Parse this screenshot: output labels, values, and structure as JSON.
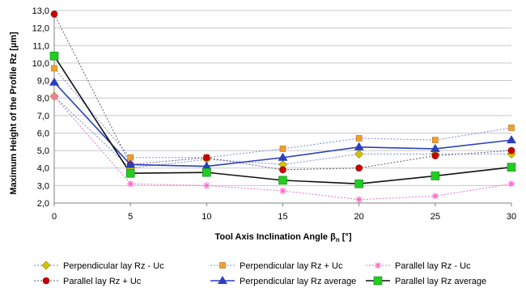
{
  "chart_data": {
    "type": "line",
    "xlabel": "Tool Axis Inclination Angle β",
    "xlabel_sub": "n",
    "xlabel_suffix": " [°]",
    "ylabel": "Maximum Height of the Profile Rz [µm]",
    "x": [
      0,
      5,
      10,
      15,
      20,
      25,
      30
    ],
    "x_tick_labels": [
      "0",
      "5",
      "10",
      "15",
      "20",
      "25",
      "30"
    ],
    "ylim": [
      2.0,
      13.0
    ],
    "y_ticks": [
      2.0,
      3.0,
      4.0,
      5.0,
      6.0,
      7.0,
      8.0,
      9.0,
      10.0,
      11.0,
      12.0,
      13.0
    ],
    "y_tick_labels": [
      "2,0",
      "3,0",
      "4,0",
      "5,0",
      "6,0",
      "7,0",
      "8,0",
      "9,0",
      "10,0",
      "11,0",
      "12,0",
      "13,0"
    ],
    "grid": "horizontal",
    "legend_position": "bottom",
    "series": [
      {
        "name": "Perpendicular lay Rz - Uc",
        "values": [
          8.1,
          4.0,
          4.5,
          4.2,
          4.8,
          4.8,
          4.8
        ],
        "color": "#d4c400",
        "marker": "diamond",
        "line": "dotted-blue"
      },
      {
        "name": "Perpendicular lay Rz + Uc",
        "values": [
          9.7,
          4.6,
          4.6,
          5.1,
          5.7,
          5.6,
          6.3
        ],
        "color": "#f0a030",
        "marker": "square",
        "line": "dotted-blue"
      },
      {
        "name": "Parallel lay Rz - Uc",
        "values": [
          8.1,
          3.1,
          3.0,
          2.7,
          2.2,
          2.4,
          3.1
        ],
        "color": "#ff66cc",
        "marker": "star",
        "line": "dotted-pink"
      },
      {
        "name": "Parallel lay Rz + Uc",
        "values": [
          12.8,
          4.2,
          4.6,
          3.9,
          4.0,
          4.7,
          5.0
        ],
        "color": "#cc0000",
        "marker": "circle",
        "line": "dotted-gray"
      },
      {
        "name": "Perpendicular lay Rz average",
        "values": [
          8.9,
          4.2,
          4.1,
          4.6,
          5.2,
          5.1,
          5.6
        ],
        "color": "#2a3fbf",
        "marker": "triangle",
        "line": "solid-blue"
      },
      {
        "name": "Parallel lay Rz average",
        "values": [
          10.4,
          3.7,
          3.75,
          3.3,
          3.1,
          3.55,
          4.05
        ],
        "color": "#22cc22",
        "marker": "square",
        "line": "solid-black"
      }
    ]
  }
}
